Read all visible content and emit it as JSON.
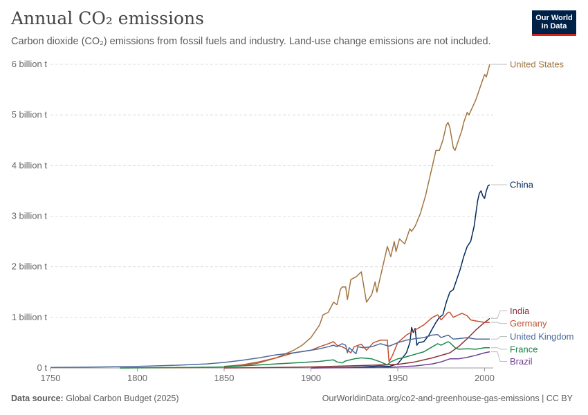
{
  "header": {
    "title": "Annual CO₂ emissions",
    "subtitle": "Carbon dioxide (CO₂) emissions from fossil fuels and industry. Land-use change emissions are not included.",
    "logo_line1": "Our World",
    "logo_line2": "in Data"
  },
  "footer": {
    "source_label": "Data source:",
    "source_value": "Global Carbon Budget (2025)",
    "url": "OurWorldinData.org/co2-and-greenhouse-gas-emissions | CC BY"
  },
  "colors": {
    "brand_navy": "#002147",
    "brand_red": "#ce261e"
  },
  "chart_data": {
    "type": "line",
    "xlim": [
      1750,
      2005
    ],
    "ylim": [
      0,
      6
    ],
    "y_unit": "billion t",
    "x_ticks": [
      1750,
      1800,
      1850,
      1900,
      1950,
      2000
    ],
    "y_ticks": [
      {
        "value": 0,
        "label": "0 t"
      },
      {
        "value": 1,
        "label": "1 billion t"
      },
      {
        "value": 2,
        "label": "2 billion t"
      },
      {
        "value": 3,
        "label": "3 billion t"
      },
      {
        "value": 4,
        "label": "4 billion t"
      },
      {
        "value": 5,
        "label": "5 billion t"
      },
      {
        "value": 6,
        "label": "6 billion t"
      }
    ],
    "grid": "horizontal dashed",
    "legend": "inline labels at right end of lines",
    "series": [
      {
        "name": "United States",
        "color": "#a2743f",
        "label_y": 6.0,
        "points": [
          [
            1790,
            0.0
          ],
          [
            1800,
            0.001
          ],
          [
            1820,
            0.003
          ],
          [
            1840,
            0.01
          ],
          [
            1850,
            0.02
          ],
          [
            1860,
            0.04
          ],
          [
            1870,
            0.1
          ],
          [
            1880,
            0.2
          ],
          [
            1890,
            0.35
          ],
          [
            1895,
            0.45
          ],
          [
            1900,
            0.6
          ],
          [
            1905,
            0.85
          ],
          [
            1907,
            1.05
          ],
          [
            1910,
            1.1
          ],
          [
            1913,
            1.3
          ],
          [
            1915,
            1.25
          ],
          [
            1917,
            1.55
          ],
          [
            1918,
            1.6
          ],
          [
            1920,
            1.6
          ],
          [
            1921,
            1.35
          ],
          [
            1923,
            1.75
          ],
          [
            1926,
            1.8
          ],
          [
            1929,
            1.9
          ],
          [
            1932,
            1.3
          ],
          [
            1935,
            1.45
          ],
          [
            1937,
            1.7
          ],
          [
            1938,
            1.5
          ],
          [
            1940,
            1.8
          ],
          [
            1942,
            2.1
          ],
          [
            1944,
            2.4
          ],
          [
            1946,
            2.2
          ],
          [
            1948,
            2.5
          ],
          [
            1949,
            2.3
          ],
          [
            1951,
            2.55
          ],
          [
            1954,
            2.45
          ],
          [
            1957,
            2.75
          ],
          [
            1958,
            2.7
          ],
          [
            1960,
            2.8
          ],
          [
            1963,
            3.05
          ],
          [
            1966,
            3.4
          ],
          [
            1968,
            3.7
          ],
          [
            1970,
            4.0
          ],
          [
            1972,
            4.3
          ],
          [
            1974,
            4.3
          ],
          [
            1976,
            4.5
          ],
          [
            1978,
            4.8
          ],
          [
            1979,
            4.85
          ],
          [
            1980,
            4.75
          ],
          [
            1982,
            4.35
          ],
          [
            1983,
            4.3
          ],
          [
            1985,
            4.5
          ],
          [
            1987,
            4.7
          ],
          [
            1988,
            4.85
          ],
          [
            1990,
            5.05
          ],
          [
            1991,
            5.0
          ],
          [
            1993,
            5.15
          ],
          [
            1995,
            5.3
          ],
          [
            1997,
            5.5
          ],
          [
            1998,
            5.6
          ],
          [
            2000,
            5.8
          ],
          [
            2001,
            5.75
          ],
          [
            2003,
            6.0
          ]
        ]
      },
      {
        "name": "China",
        "color": "#00295b",
        "label_y": 3.62,
        "points": [
          [
            1900,
            0.0
          ],
          [
            1920,
            0.01
          ],
          [
            1930,
            0.02
          ],
          [
            1940,
            0.04
          ],
          [
            1945,
            0.03
          ],
          [
            1950,
            0.08
          ],
          [
            1955,
            0.3
          ],
          [
            1957,
            0.5
          ],
          [
            1958,
            0.8
          ],
          [
            1959,
            0.7
          ],
          [
            1960,
            0.78
          ],
          [
            1961,
            0.45
          ],
          [
            1962,
            0.5
          ],
          [
            1965,
            0.52
          ],
          [
            1968,
            0.65
          ],
          [
            1970,
            0.78
          ],
          [
            1972,
            0.9
          ],
          [
            1974,
            1.0
          ],
          [
            1976,
            1.05
          ],
          [
            1978,
            1.3
          ],
          [
            1980,
            1.5
          ],
          [
            1982,
            1.55
          ],
          [
            1984,
            1.75
          ],
          [
            1986,
            1.95
          ],
          [
            1988,
            2.2
          ],
          [
            1990,
            2.4
          ],
          [
            1992,
            2.5
          ],
          [
            1994,
            2.8
          ],
          [
            1996,
            3.3
          ],
          [
            1997,
            3.45
          ],
          [
            1998,
            3.5
          ],
          [
            1999,
            3.4
          ],
          [
            2000,
            3.35
          ],
          [
            2001,
            3.5
          ],
          [
            2002,
            3.6
          ],
          [
            2003,
            3.62
          ]
        ]
      },
      {
        "name": "India",
        "color": "#883039",
        "label_y": 1.13,
        "points": [
          [
            1850,
            0.0
          ],
          [
            1880,
            0.01
          ],
          [
            1900,
            0.02
          ],
          [
            1920,
            0.04
          ],
          [
            1940,
            0.06
          ],
          [
            1950,
            0.07
          ],
          [
            1960,
            0.12
          ],
          [
            1970,
            0.2
          ],
          [
            1980,
            0.3
          ],
          [
            1985,
            0.42
          ],
          [
            1990,
            0.58
          ],
          [
            1995,
            0.75
          ],
          [
            2000,
            0.9
          ],
          [
            2002,
            0.95
          ],
          [
            2003,
            0.98
          ]
        ]
      },
      {
        "name": "Germany",
        "color": "#c15130",
        "label_y": 0.88,
        "points": [
          [
            1850,
            0.03
          ],
          [
            1860,
            0.06
          ],
          [
            1870,
            0.12
          ],
          [
            1880,
            0.2
          ],
          [
            1890,
            0.3
          ],
          [
            1900,
            0.35
          ],
          [
            1905,
            0.42
          ],
          [
            1910,
            0.48
          ],
          [
            1913,
            0.52
          ],
          [
            1915,
            0.45
          ],
          [
            1918,
            0.42
          ],
          [
            1920,
            0.38
          ],
          [
            1923,
            0.3
          ],
          [
            1925,
            0.42
          ],
          [
            1929,
            0.47
          ],
          [
            1932,
            0.35
          ],
          [
            1936,
            0.5
          ],
          [
            1940,
            0.55
          ],
          [
            1944,
            0.55
          ],
          [
            1945,
            0.12
          ],
          [
            1947,
            0.25
          ],
          [
            1950,
            0.5
          ],
          [
            1955,
            0.65
          ],
          [
            1960,
            0.75
          ],
          [
            1965,
            0.85
          ],
          [
            1970,
            1.0
          ],
          [
            1973,
            1.05
          ],
          [
            1975,
            0.95
          ],
          [
            1979,
            1.1
          ],
          [
            1980,
            1.1
          ],
          [
            1982,
            1.0
          ],
          [
            1985,
            1.05
          ],
          [
            1987,
            1.08
          ],
          [
            1990,
            1.03
          ],
          [
            1992,
            0.95
          ],
          [
            1995,
            0.93
          ],
          [
            2000,
            0.9
          ],
          [
            2003,
            0.9
          ]
        ]
      },
      {
        "name": "United Kingdom",
        "color": "#4c6a9c",
        "label_y": 0.62,
        "points": [
          [
            1750,
            0.01
          ],
          [
            1780,
            0.02
          ],
          [
            1800,
            0.03
          ],
          [
            1820,
            0.05
          ],
          [
            1840,
            0.08
          ],
          [
            1850,
            0.11
          ],
          [
            1860,
            0.15
          ],
          [
            1870,
            0.2
          ],
          [
            1880,
            0.26
          ],
          [
            1890,
            0.3
          ],
          [
            1900,
            0.35
          ],
          [
            1905,
            0.38
          ],
          [
            1910,
            0.42
          ],
          [
            1913,
            0.45
          ],
          [
            1915,
            0.42
          ],
          [
            1918,
            0.48
          ],
          [
            1920,
            0.45
          ],
          [
            1921,
            0.3
          ],
          [
            1922,
            0.4
          ],
          [
            1926,
            0.28
          ],
          [
            1927,
            0.42
          ],
          [
            1930,
            0.4
          ],
          [
            1935,
            0.42
          ],
          [
            1940,
            0.48
          ],
          [
            1945,
            0.43
          ],
          [
            1950,
            0.5
          ],
          [
            1955,
            0.55
          ],
          [
            1960,
            0.58
          ],
          [
            1965,
            0.6
          ],
          [
            1970,
            0.65
          ],
          [
            1973,
            0.66
          ],
          [
            1975,
            0.6
          ],
          [
            1979,
            0.65
          ],
          [
            1982,
            0.57
          ],
          [
            1985,
            0.58
          ],
          [
            1990,
            0.6
          ],
          [
            1995,
            0.57
          ],
          [
            2000,
            0.57
          ],
          [
            2003,
            0.57
          ]
        ]
      },
      {
        "name": "France",
        "color": "#18894a",
        "label_y": 0.37,
        "points": [
          [
            1790,
            0.0
          ],
          [
            1800,
            0.003
          ],
          [
            1830,
            0.01
          ],
          [
            1850,
            0.02
          ],
          [
            1870,
            0.06
          ],
          [
            1880,
            0.08
          ],
          [
            1890,
            0.1
          ],
          [
            1900,
            0.12
          ],
          [
            1905,
            0.13
          ],
          [
            1910,
            0.15
          ],
          [
            1913,
            0.16
          ],
          [
            1915,
            0.12
          ],
          [
            1918,
            0.1
          ],
          [
            1920,
            0.14
          ],
          [
            1925,
            0.18
          ],
          [
            1929,
            0.2
          ],
          [
            1935,
            0.18
          ],
          [
            1940,
            0.12
          ],
          [
            1944,
            0.06
          ],
          [
            1946,
            0.12
          ],
          [
            1950,
            0.18
          ],
          [
            1955,
            0.22
          ],
          [
            1960,
            0.27
          ],
          [
            1965,
            0.32
          ],
          [
            1970,
            0.42
          ],
          [
            1973,
            0.48
          ],
          [
            1975,
            0.45
          ],
          [
            1979,
            0.52
          ],
          [
            1980,
            0.5
          ],
          [
            1983,
            0.4
          ],
          [
            1985,
            0.37
          ],
          [
            1990,
            0.38
          ],
          [
            1995,
            0.37
          ],
          [
            2000,
            0.4
          ],
          [
            2003,
            0.4
          ]
        ]
      },
      {
        "name": "Brazil",
        "color": "#6d3e91",
        "label_y": 0.13,
        "points": [
          [
            1900,
            0.0
          ],
          [
            1920,
            0.005
          ],
          [
            1940,
            0.01
          ],
          [
            1950,
            0.02
          ],
          [
            1960,
            0.04
          ],
          [
            1970,
            0.08
          ],
          [
            1975,
            0.12
          ],
          [
            1980,
            0.18
          ],
          [
            1985,
            0.18
          ],
          [
            1990,
            0.21
          ],
          [
            1995,
            0.25
          ],
          [
            2000,
            0.3
          ],
          [
            2003,
            0.32
          ]
        ]
      }
    ]
  }
}
